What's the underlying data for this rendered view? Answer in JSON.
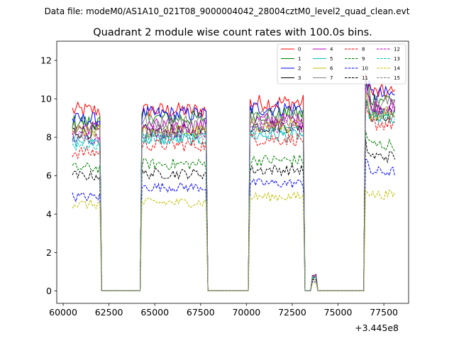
{
  "chart_data": {
    "type": "line",
    "suptitle": "Data file: modeM0/AS1A10_021T08_9000004042_28004cztM0_level2_quad_clean.evt",
    "title": "Quadrant 2 module wise count rates with 100.0s bins.",
    "xlabel": "",
    "ylabel": "",
    "x_offset_label": "+3.445e8",
    "xlim": [
      59650,
      78850
    ],
    "ylim": [
      -0.65,
      13.0
    ],
    "x_ticks": [
      60000,
      62500,
      65000,
      67500,
      70000,
      72500,
      75000,
      77500
    ],
    "x_tick_labels": [
      "60000",
      "62500",
      "65000",
      "67500",
      "70000",
      "72500",
      "75000",
      "77500"
    ],
    "y_ticks": [
      0,
      2,
      4,
      6,
      8,
      10,
      12
    ],
    "y_tick_labels": [
      "0",
      "2",
      "4",
      "6",
      "8",
      "10",
      "12"
    ],
    "bin_seconds": 100,
    "legend_position": "top-right",
    "segments": [
      {
        "start": 60500,
        "end": 62000
      },
      {
        "start": 64300,
        "end": 67800
      },
      {
        "start": 70200,
        "end": 73100
      },
      {
        "start": 73600,
        "end": 73800
      },
      {
        "start": 76500,
        "end": 78100
      }
    ],
    "series": [
      {
        "name": "0",
        "color": "#ff0000",
        "dash": "solid",
        "levels": [
          9.4,
          9.4,
          9.8,
          0.8,
          10.3
        ]
      },
      {
        "name": "1",
        "color": "#008000",
        "dash": "solid",
        "levels": [
          8.8,
          9.0,
          9.2,
          0.8,
          10.0
        ]
      },
      {
        "name": "2",
        "color": "#0000ff",
        "dash": "solid",
        "levels": [
          8.9,
          9.2,
          9.5,
          0.8,
          10.2
        ]
      },
      {
        "name": "3",
        "color": "#000000",
        "dash": "solid",
        "levels": [
          8.3,
          8.3,
          8.6,
          0.75,
          9.2
        ]
      },
      {
        "name": "4",
        "color": "#bf00bf",
        "dash": "solid",
        "levels": [
          8.5,
          8.6,
          8.9,
          0.75,
          9.6
        ]
      },
      {
        "name": "5",
        "color": "#00bfbf",
        "dash": "solid",
        "levels": [
          7.8,
          7.9,
          8.1,
          0.7,
          9.0
        ]
      },
      {
        "name": "6",
        "color": "#bfbf00",
        "dash": "solid",
        "levels": [
          8.3,
          8.3,
          8.6,
          0.75,
          9.3
        ]
      },
      {
        "name": "7",
        "color": "#808080",
        "dash": "solid",
        "levels": [
          8.6,
          8.8,
          9.1,
          0.8,
          9.8
        ]
      },
      {
        "name": "8",
        "color": "#ff0000",
        "dash": "dashed",
        "levels": [
          7.2,
          7.6,
          7.9,
          0.7,
          8.7
        ]
      },
      {
        "name": "9",
        "color": "#008000",
        "dash": "dashed",
        "levels": [
          6.4,
          6.6,
          6.8,
          0.6,
          7.6
        ]
      },
      {
        "name": "10",
        "color": "#0000ff",
        "dash": "dashed",
        "levels": [
          4.9,
          5.4,
          5.6,
          0.5,
          6.2
        ]
      },
      {
        "name": "11",
        "color": "#000000",
        "dash": "dashed",
        "levels": [
          6.0,
          6.1,
          6.3,
          0.55,
          7.0
        ]
      },
      {
        "name": "12",
        "color": "#bf00bf",
        "dash": "dashed",
        "levels": [
          8.0,
          8.3,
          8.6,
          0.75,
          9.5
        ]
      },
      {
        "name": "13",
        "color": "#00bfbf",
        "dash": "dashed",
        "levels": [
          7.6,
          8.0,
          8.3,
          0.7,
          9.1
        ]
      },
      {
        "name": "14",
        "color": "#bfbf00",
        "dash": "dashed",
        "levels": [
          4.5,
          4.6,
          4.9,
          0.45,
          5.0
        ]
      },
      {
        "name": "15",
        "color": "#808080",
        "dash": "dashed",
        "levels": [
          8.1,
          8.2,
          8.5,
          0.75,
          9.2
        ]
      }
    ]
  }
}
